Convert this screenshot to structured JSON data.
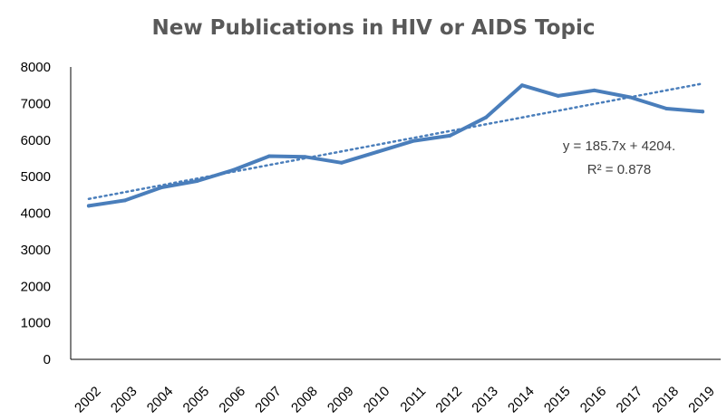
{
  "chart_data": {
    "type": "line",
    "title": "New Publications in HIV or AIDS Topic",
    "xlabel": "",
    "ylabel": "",
    "ylim": [
      0,
      8000
    ],
    "yticks": [
      0,
      1000,
      2000,
      3000,
      4000,
      5000,
      6000,
      7000,
      8000
    ],
    "categories": [
      "2002",
      "2003",
      "2004",
      "2005",
      "2006",
      "2007",
      "2008",
      "2009",
      "2010",
      "2011",
      "2012",
      "2013",
      "2014",
      "2015",
      "2016",
      "2017",
      "2018",
      "2019"
    ],
    "series": [
      {
        "values": [
          4200,
          4350,
          4700,
          4880,
          5180,
          5560,
          5540,
          5380,
          5680,
          5980,
          6120,
          6620,
          7500,
          7210,
          7360,
          7170,
          6860,
          6780
        ]
      }
    ],
    "trendline": {
      "type": "linear",
      "slope": 185.7,
      "intercept": 4204,
      "equation": "y = 185.7x + 4204.",
      "r_squared": "R² = 0.878"
    },
    "grid": false,
    "legend": "none",
    "colors": {
      "line": "#4a7ebb",
      "axis": "#000000",
      "title": "#595959"
    }
  }
}
